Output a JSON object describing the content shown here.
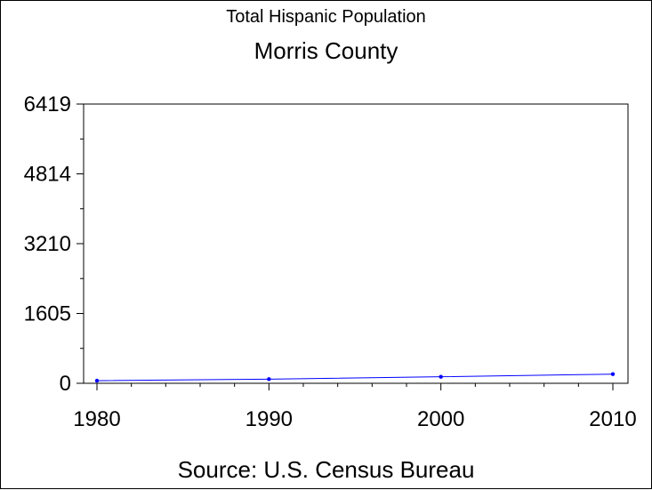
{
  "chart_data": {
    "type": "line",
    "title": "Total Hispanic Population",
    "subtitle": "Morris County",
    "source": "Source: U.S. Census Bureau",
    "x": [
      1980,
      1990,
      2000,
      2010
    ],
    "xticks": [
      "1980",
      "1990",
      "2000",
      "2010"
    ],
    "xlim": [
      1980,
      2010
    ],
    "yticks": [
      "0",
      "1605",
      "3210",
      "4814",
      "6419"
    ],
    "ylim": [
      0,
      6419
    ],
    "series": [
      {
        "values": [
          60,
          95,
          150,
          210
        ],
        "color": "#0000ff"
      }
    ],
    "grid": false
  }
}
